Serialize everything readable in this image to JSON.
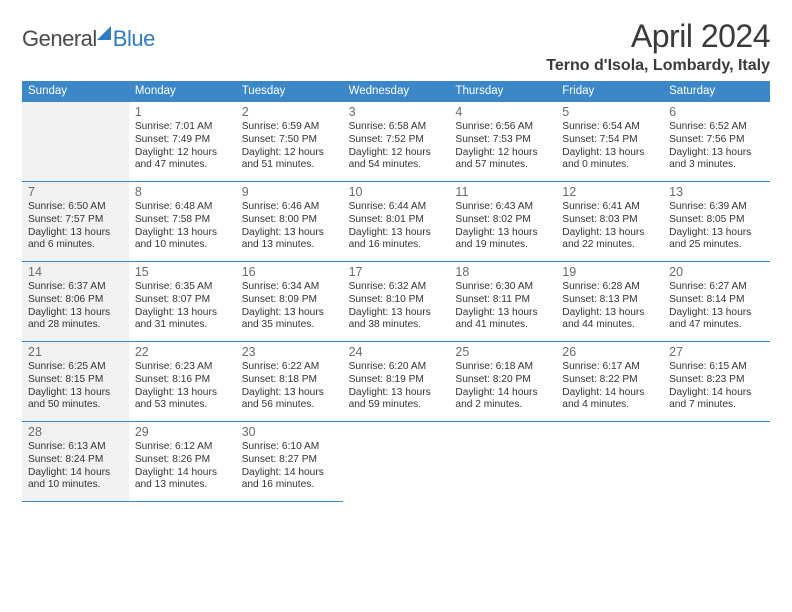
{
  "logo": {
    "part1": "General",
    "part2": "Blue"
  },
  "title": "April 2024",
  "location": "Terno d'Isola, Lombardy, Italy",
  "colors": {
    "header_bg": "#3b87c8",
    "header_text": "#ffffff",
    "divider": "#3b87c8",
    "shade_bg": "#f1f1f1",
    "page_bg": "#ffffff",
    "text": "#333333",
    "daynum": "#6a6a6a",
    "title_color": "#3a3a3a",
    "logo_blue": "#2f7bbf",
    "logo_gray": "#4a4a4a"
  },
  "daysOfWeek": [
    "Sunday",
    "Monday",
    "Tuesday",
    "Wednesday",
    "Thursday",
    "Friday",
    "Saturday"
  ],
  "grid": {
    "cols": 7,
    "rows": 5,
    "leadingBlanks": 1,
    "trailingBlanks": 4,
    "shadeColumns": [
      0
    ]
  },
  "days": [
    {
      "n": 1,
      "sunrise": "7:01 AM",
      "sunset": "7:49 PM",
      "daylight": "12 hours and 47 minutes."
    },
    {
      "n": 2,
      "sunrise": "6:59 AM",
      "sunset": "7:50 PM",
      "daylight": "12 hours and 51 minutes."
    },
    {
      "n": 3,
      "sunrise": "6:58 AM",
      "sunset": "7:52 PM",
      "daylight": "12 hours and 54 minutes."
    },
    {
      "n": 4,
      "sunrise": "6:56 AM",
      "sunset": "7:53 PM",
      "daylight": "12 hours and 57 minutes."
    },
    {
      "n": 5,
      "sunrise": "6:54 AM",
      "sunset": "7:54 PM",
      "daylight": "13 hours and 0 minutes."
    },
    {
      "n": 6,
      "sunrise": "6:52 AM",
      "sunset": "7:56 PM",
      "daylight": "13 hours and 3 minutes."
    },
    {
      "n": 7,
      "sunrise": "6:50 AM",
      "sunset": "7:57 PM",
      "daylight": "13 hours and 6 minutes."
    },
    {
      "n": 8,
      "sunrise": "6:48 AM",
      "sunset": "7:58 PM",
      "daylight": "13 hours and 10 minutes."
    },
    {
      "n": 9,
      "sunrise": "6:46 AM",
      "sunset": "8:00 PM",
      "daylight": "13 hours and 13 minutes."
    },
    {
      "n": 10,
      "sunrise": "6:44 AM",
      "sunset": "8:01 PM",
      "daylight": "13 hours and 16 minutes."
    },
    {
      "n": 11,
      "sunrise": "6:43 AM",
      "sunset": "8:02 PM",
      "daylight": "13 hours and 19 minutes."
    },
    {
      "n": 12,
      "sunrise": "6:41 AM",
      "sunset": "8:03 PM",
      "daylight": "13 hours and 22 minutes."
    },
    {
      "n": 13,
      "sunrise": "6:39 AM",
      "sunset": "8:05 PM",
      "daylight": "13 hours and 25 minutes."
    },
    {
      "n": 14,
      "sunrise": "6:37 AM",
      "sunset": "8:06 PM",
      "daylight": "13 hours and 28 minutes."
    },
    {
      "n": 15,
      "sunrise": "6:35 AM",
      "sunset": "8:07 PM",
      "daylight": "13 hours and 31 minutes."
    },
    {
      "n": 16,
      "sunrise": "6:34 AM",
      "sunset": "8:09 PM",
      "daylight": "13 hours and 35 minutes."
    },
    {
      "n": 17,
      "sunrise": "6:32 AM",
      "sunset": "8:10 PM",
      "daylight": "13 hours and 38 minutes."
    },
    {
      "n": 18,
      "sunrise": "6:30 AM",
      "sunset": "8:11 PM",
      "daylight": "13 hours and 41 minutes."
    },
    {
      "n": 19,
      "sunrise": "6:28 AM",
      "sunset": "8:13 PM",
      "daylight": "13 hours and 44 minutes."
    },
    {
      "n": 20,
      "sunrise": "6:27 AM",
      "sunset": "8:14 PM",
      "daylight": "13 hours and 47 minutes."
    },
    {
      "n": 21,
      "sunrise": "6:25 AM",
      "sunset": "8:15 PM",
      "daylight": "13 hours and 50 minutes."
    },
    {
      "n": 22,
      "sunrise": "6:23 AM",
      "sunset": "8:16 PM",
      "daylight": "13 hours and 53 minutes."
    },
    {
      "n": 23,
      "sunrise": "6:22 AM",
      "sunset": "8:18 PM",
      "daylight": "13 hours and 56 minutes."
    },
    {
      "n": 24,
      "sunrise": "6:20 AM",
      "sunset": "8:19 PM",
      "daylight": "13 hours and 59 minutes."
    },
    {
      "n": 25,
      "sunrise": "6:18 AM",
      "sunset": "8:20 PM",
      "daylight": "14 hours and 2 minutes."
    },
    {
      "n": 26,
      "sunrise": "6:17 AM",
      "sunset": "8:22 PM",
      "daylight": "14 hours and 4 minutes."
    },
    {
      "n": 27,
      "sunrise": "6:15 AM",
      "sunset": "8:23 PM",
      "daylight": "14 hours and 7 minutes."
    },
    {
      "n": 28,
      "sunrise": "6:13 AM",
      "sunset": "8:24 PM",
      "daylight": "14 hours and 10 minutes."
    },
    {
      "n": 29,
      "sunrise": "6:12 AM",
      "sunset": "8:26 PM",
      "daylight": "14 hours and 13 minutes."
    },
    {
      "n": 30,
      "sunrise": "6:10 AM",
      "sunset": "8:27 PM",
      "daylight": "14 hours and 16 minutes."
    }
  ],
  "labels": {
    "sunrise": "Sunrise:",
    "sunset": "Sunset:",
    "daylight": "Daylight:"
  }
}
